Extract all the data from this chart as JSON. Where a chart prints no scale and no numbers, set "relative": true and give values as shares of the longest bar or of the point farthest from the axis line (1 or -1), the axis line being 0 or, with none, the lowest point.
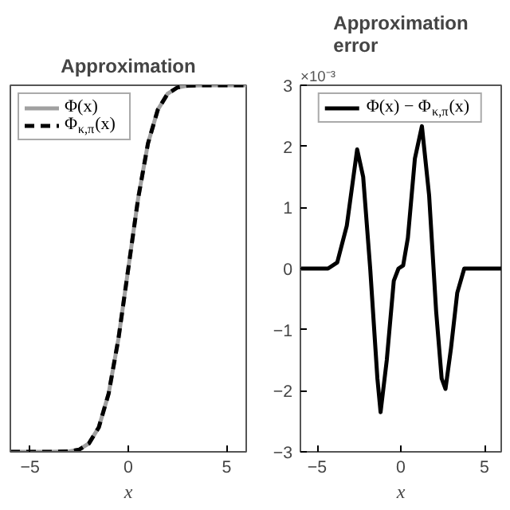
{
  "chart_data": [
    {
      "type": "line",
      "title": "Approximation",
      "xlabel": "x",
      "relative": true,
      "tick_labels": "x",
      "xlim": [
        -6,
        6
      ],
      "xticks": [
        -5,
        0,
        5
      ],
      "legend": "top left",
      "grid": false,
      "x": [
        -6,
        -4,
        -3,
        -2.5,
        -2,
        -1.5,
        -1,
        -0.5,
        0,
        0.5,
        1,
        1.5,
        2,
        2.5,
        3,
        4,
        6
      ],
      "series": [
        {
          "name": "Φ(x)",
          "color": "#a0a0a0",
          "line_style": "solid",
          "values": [
            0,
            0,
            0.001,
            0.006,
            0.023,
            0.067,
            0.159,
            0.309,
            0.5,
            0.691,
            0.841,
            0.933,
            0.977,
            0.994,
            0.999,
            1,
            1
          ]
        },
        {
          "name": "Φ$_{κ,π}$(x)",
          "color": "#000000",
          "line_style": "dashed",
          "values": [
            0,
            0,
            0.001,
            0.006,
            0.023,
            0.067,
            0.159,
            0.309,
            0.5,
            0.691,
            0.841,
            0.933,
            0.977,
            0.994,
            0.999,
            1,
            1
          ]
        }
      ]
    },
    {
      "type": "line",
      "title": "Approximation\nerror",
      "xlabel": "x",
      "xlim": [
        -6,
        6
      ],
      "xticks": [
        -5,
        0,
        5
      ],
      "ylim": [
        -3,
        3
      ],
      "yticks": [
        -3,
        -2,
        -1,
        0,
        1,
        2,
        3
      ],
      "legend": "top",
      "grid": false,
      "annotations": [
        "×10⁻³"
      ],
      "x": [
        -6,
        -4.35,
        -3.8,
        -3.23,
        -2.61,
        -2.25,
        -1.83,
        -1.4,
        -1.21,
        -0.84,
        -0.42,
        -0.14,
        0.14,
        0.42,
        0.84,
        1.26,
        1.69,
        2.11,
        2.44,
        2.67,
        3.0,
        3.37,
        3.79,
        4.9,
        6
      ],
      "series": [
        {
          "name": "Φ(x) − Φ$_{κ,π}$(x)",
          "color": "#000000",
          "line_style": "solid",
          "values": [
            0,
            0,
            0.1,
            0.7,
            1.95,
            1.5,
            0,
            -1.8,
            -2.35,
            -1.5,
            -0.2,
            0,
            0.05,
            0.5,
            1.8,
            2.33,
            1.2,
            -0.7,
            -1.8,
            -1.97,
            -1.3,
            -0.4,
            0,
            0,
            0
          ]
        }
      ]
    }
  ]
}
